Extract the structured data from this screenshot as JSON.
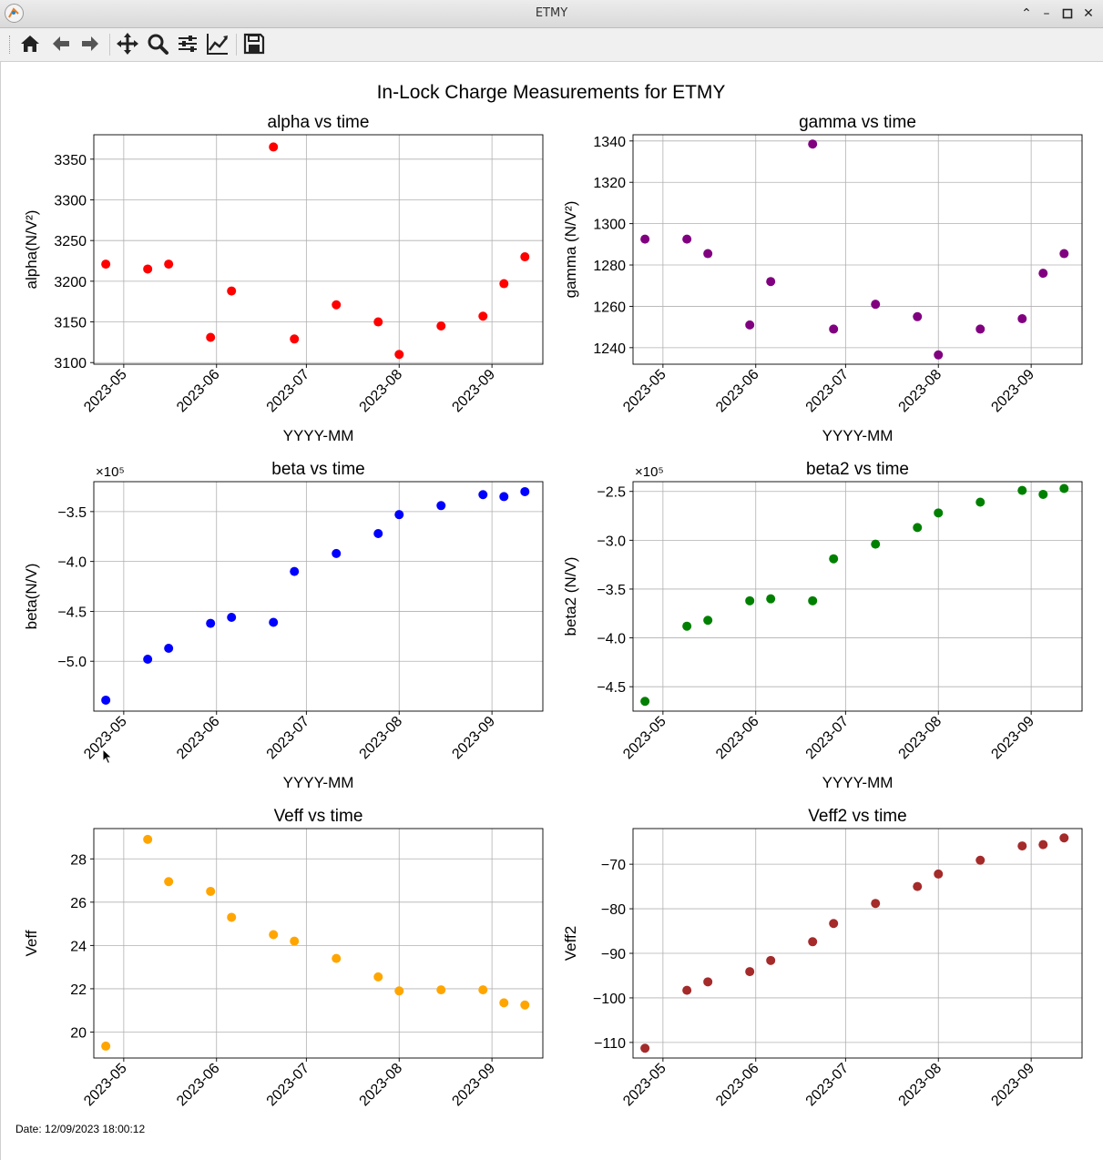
{
  "window": {
    "title": "ETMY"
  },
  "toolbar": {
    "buttons": [
      "home-icon",
      "back-arrow-icon",
      "forward-arrow-icon",
      "pan-icon",
      "zoom-icon",
      "configure-subplots-icon",
      "edit-axis-icon",
      "save-icon"
    ]
  },
  "figure": {
    "suptitle": "In-Lock Charge Measurements for ETMY",
    "date_text": "Date: 12/09/2023 18:00:12"
  },
  "colors": {
    "alpha": "#ff0000",
    "gamma": "#800080",
    "beta": "#0000ff",
    "beta2": "#008000",
    "Veff": "#ffa500",
    "Veff2": "#a52a2a"
  },
  "chart_data": [
    {
      "type": "scatter",
      "title": "alpha vs time",
      "xlabel": "YYYY-MM",
      "ylabel": "alpha(N/V²)",
      "x": [
        "2023-04-25",
        "2023-05-09",
        "2023-05-16",
        "2023-05-30",
        "2023-06-06",
        "2023-06-20",
        "2023-06-27",
        "2023-07-11",
        "2023-07-25",
        "2023-08-01",
        "2023-08-15",
        "2023-08-29",
        "2023-09-05",
        "2023-09-12"
      ],
      "y": [
        3221,
        3215,
        3221,
        3131,
        3188,
        3365,
        3129,
        3171,
        3150,
        3110,
        3145,
        3157,
        3197,
        3230
      ],
      "yticks": [
        3100,
        3150,
        3200,
        3250,
        3300,
        3350
      ],
      "ylim": [
        3098,
        3380
      ],
      "color": "#ff0000"
    },
    {
      "type": "scatter",
      "title": "gamma vs time",
      "xlabel": "YYYY-MM",
      "ylabel": "gamma (N/V²)",
      "x": [
        "2023-04-25",
        "2023-05-09",
        "2023-05-16",
        "2023-05-30",
        "2023-06-06",
        "2023-06-20",
        "2023-06-27",
        "2023-07-11",
        "2023-07-25",
        "2023-08-01",
        "2023-08-15",
        "2023-08-29",
        "2023-09-05",
        "2023-09-12"
      ],
      "y": [
        1292.5,
        1292.5,
        1285.5,
        1251,
        1272,
        1338.5,
        1249,
        1261,
        1255,
        1236.5,
        1249,
        1254,
        1276,
        1285.5
      ],
      "yticks": [
        1240,
        1260,
        1280,
        1300,
        1320,
        1340
      ],
      "ylim": [
        1232,
        1343
      ],
      "color": "#800080"
    },
    {
      "type": "scatter",
      "title": "beta vs time",
      "xlabel": "YYYY-MM",
      "ylabel": "beta(N/V)",
      "offset_text": "×10⁵",
      "x": [
        "2023-04-25",
        "2023-05-09",
        "2023-05-16",
        "2023-05-30",
        "2023-06-06",
        "2023-06-20",
        "2023-06-27",
        "2023-07-11",
        "2023-07-25",
        "2023-08-01",
        "2023-08-15",
        "2023-08-29",
        "2023-09-05",
        "2023-09-12"
      ],
      "y": [
        -5.39,
        -4.98,
        -4.87,
        -4.62,
        -4.56,
        -4.61,
        -4.1,
        -3.92,
        -3.72,
        -3.53,
        -3.44,
        -3.33,
        -3.35,
        -3.3
      ],
      "yticks": [
        -5.0,
        -4.5,
        -4.0,
        -3.5
      ],
      "ytick_labels": [
        "−5.0",
        "−4.5",
        "−4.0",
        "−3.5"
      ],
      "ylim": [
        -5.5,
        -3.2
      ],
      "color": "#0000ff"
    },
    {
      "type": "scatter",
      "title": "beta2 vs time",
      "xlabel": "YYYY-MM",
      "ylabel": "beta2 (N/V)",
      "offset_text": "×10⁵",
      "x": [
        "2023-04-25",
        "2023-05-09",
        "2023-05-16",
        "2023-05-30",
        "2023-06-06",
        "2023-06-20",
        "2023-06-27",
        "2023-07-11",
        "2023-07-25",
        "2023-08-01",
        "2023-08-15",
        "2023-08-29",
        "2023-09-05",
        "2023-09-12"
      ],
      "y": [
        -4.65,
        -3.88,
        -3.82,
        -3.62,
        -3.6,
        -3.62,
        -3.19,
        -3.04,
        -2.87,
        -2.72,
        -2.61,
        -2.49,
        -2.53,
        -2.47
      ],
      "yticks": [
        -4.5,
        -4.0,
        -3.5,
        -3.0,
        -2.5
      ],
      "ytick_labels": [
        "−4.5",
        "−4.0",
        "−3.5",
        "−3.0",
        "−2.5"
      ],
      "ylim": [
        -4.75,
        -2.4
      ],
      "color": "#008000"
    },
    {
      "type": "scatter",
      "title": "Veff vs time",
      "xlabel": "YYYY-MM",
      "ylabel": "Veff",
      "x": [
        "2023-04-25",
        "2023-05-09",
        "2023-05-16",
        "2023-05-30",
        "2023-06-06",
        "2023-06-20",
        "2023-06-27",
        "2023-07-11",
        "2023-07-25",
        "2023-08-01",
        "2023-08-15",
        "2023-08-29",
        "2023-09-05",
        "2023-09-12"
      ],
      "y": [
        19.35,
        28.9,
        26.95,
        26.5,
        25.3,
        24.5,
        24.2,
        23.4,
        22.55,
        21.9,
        21.95,
        21.95,
        21.35,
        21.25
      ],
      "yticks": [
        20,
        22,
        24,
        26,
        28
      ],
      "ylim": [
        18.8,
        29.4
      ],
      "color": "#ffa500"
    },
    {
      "type": "scatter",
      "title": "Veff2 vs time",
      "xlabel": "YYYY-MM",
      "ylabel": "Veff2",
      "x": [
        "2023-04-25",
        "2023-05-09",
        "2023-05-16",
        "2023-05-30",
        "2023-06-06",
        "2023-06-20",
        "2023-06-27",
        "2023-07-11",
        "2023-07-25",
        "2023-08-01",
        "2023-08-15",
        "2023-08-29",
        "2023-09-05",
        "2023-09-12"
      ],
      "y": [
        -111.3,
        -98.3,
        -96.4,
        -94.1,
        -91.6,
        -87.4,
        -83.3,
        -78.8,
        -75.0,
        -72.2,
        -69.1,
        -65.9,
        -65.6,
        -64.1
      ],
      "yticks": [
        -110,
        -100,
        -90,
        -80,
        -70
      ],
      "ytick_labels": [
        "−110",
        "−100",
        "−90",
        "−80",
        "−70"
      ],
      "ylim": [
        -113.5,
        -62
      ],
      "color": "#a52a2a"
    }
  ],
  "xaxis": {
    "ticks": [
      "2023-05-01",
      "2023-06-01",
      "2023-07-01",
      "2023-08-01",
      "2023-09-01"
    ],
    "tick_labels": [
      "2023-05",
      "2023-06",
      "2023-07",
      "2023-08",
      "2023-09"
    ],
    "xlim": [
      "2023-04-21",
      "2023-09-18"
    ]
  }
}
